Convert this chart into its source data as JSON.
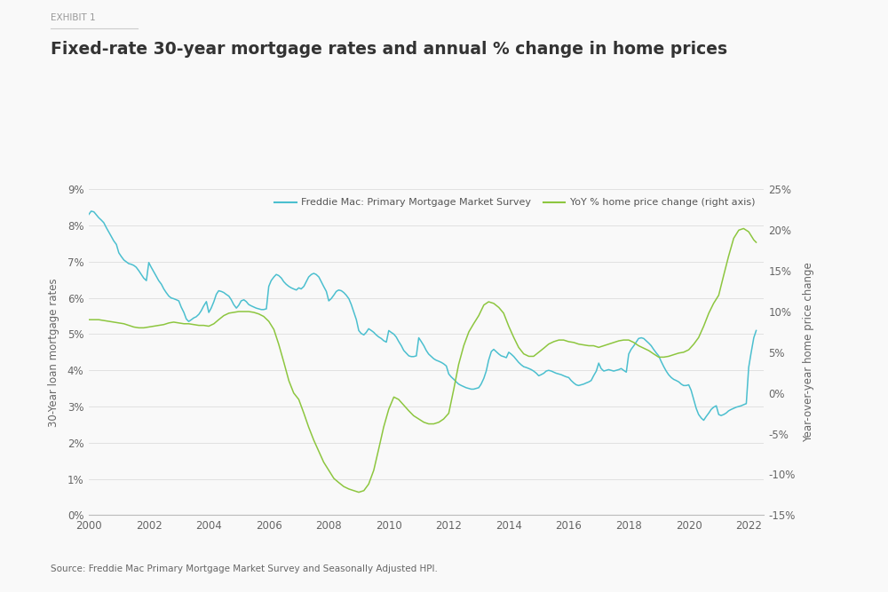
{
  "title": "Fixed-rate 30-year mortgage rates and annual % change in home prices",
  "exhibit": "EXHIBIT 1",
  "source": "Source: Freddie Mac Primary Mortgage Market Survey and Seasonally Adjusted HPI.",
  "ylabel_left": "30-Year loan mortgage rates",
  "ylabel_right": "Year-over-year home price change",
  "legend_line1": "Freddie Mac: Primary Mortgage Market Survey",
  "legend_line2": "YoY % home price change (right axis)",
  "color_mortgage": "#4BBFCF",
  "color_hpi": "#8DC63F",
  "background_color": "#F9F9F9",
  "xlim": [
    2000,
    2022.5
  ],
  "ylim_left": [
    0,
    0.09
  ],
  "ylim_right": [
    -0.15,
    0.25
  ],
  "mortgage_dates": [
    2000.0,
    2000.08,
    2000.17,
    2000.25,
    2000.33,
    2000.42,
    2000.5,
    2000.58,
    2000.67,
    2000.75,
    2000.83,
    2000.92,
    2001.0,
    2001.08,
    2001.17,
    2001.25,
    2001.33,
    2001.42,
    2001.5,
    2001.58,
    2001.67,
    2001.75,
    2001.83,
    2001.92,
    2002.0,
    2002.08,
    2002.17,
    2002.25,
    2002.33,
    2002.42,
    2002.5,
    2002.58,
    2002.67,
    2002.75,
    2002.83,
    2002.92,
    2003.0,
    2003.08,
    2003.17,
    2003.25,
    2003.33,
    2003.42,
    2003.5,
    2003.58,
    2003.67,
    2003.75,
    2003.83,
    2003.92,
    2004.0,
    2004.08,
    2004.17,
    2004.25,
    2004.33,
    2004.42,
    2004.5,
    2004.58,
    2004.67,
    2004.75,
    2004.83,
    2004.92,
    2005.0,
    2005.08,
    2005.17,
    2005.25,
    2005.33,
    2005.42,
    2005.5,
    2005.58,
    2005.67,
    2005.75,
    2005.83,
    2005.92,
    2006.0,
    2006.08,
    2006.17,
    2006.25,
    2006.33,
    2006.42,
    2006.5,
    2006.58,
    2006.67,
    2006.75,
    2006.83,
    2006.92,
    2007.0,
    2007.08,
    2007.17,
    2007.25,
    2007.33,
    2007.42,
    2007.5,
    2007.58,
    2007.67,
    2007.75,
    2007.83,
    2007.92,
    2008.0,
    2008.08,
    2008.17,
    2008.25,
    2008.33,
    2008.42,
    2008.5,
    2008.58,
    2008.67,
    2008.75,
    2008.83,
    2008.92,
    2009.0,
    2009.08,
    2009.17,
    2009.25,
    2009.33,
    2009.42,
    2009.5,
    2009.58,
    2009.67,
    2009.75,
    2009.83,
    2009.92,
    2010.0,
    2010.08,
    2010.17,
    2010.25,
    2010.33,
    2010.42,
    2010.5,
    2010.58,
    2010.67,
    2010.75,
    2010.83,
    2010.92,
    2011.0,
    2011.08,
    2011.17,
    2011.25,
    2011.33,
    2011.42,
    2011.5,
    2011.58,
    2011.67,
    2011.75,
    2011.83,
    2011.92,
    2012.0,
    2012.08,
    2012.17,
    2012.25,
    2012.33,
    2012.42,
    2012.5,
    2012.58,
    2012.67,
    2012.75,
    2012.83,
    2012.92,
    2013.0,
    2013.08,
    2013.17,
    2013.25,
    2013.33,
    2013.42,
    2013.5,
    2013.58,
    2013.67,
    2013.75,
    2013.83,
    2013.92,
    2014.0,
    2014.08,
    2014.17,
    2014.25,
    2014.33,
    2014.42,
    2014.5,
    2014.58,
    2014.67,
    2014.75,
    2014.83,
    2014.92,
    2015.0,
    2015.08,
    2015.17,
    2015.25,
    2015.33,
    2015.42,
    2015.5,
    2015.58,
    2015.67,
    2015.75,
    2015.83,
    2015.92,
    2016.0,
    2016.08,
    2016.17,
    2016.25,
    2016.33,
    2016.42,
    2016.5,
    2016.58,
    2016.67,
    2016.75,
    2016.83,
    2016.92,
    2017.0,
    2017.08,
    2017.17,
    2017.25,
    2017.33,
    2017.42,
    2017.5,
    2017.58,
    2017.67,
    2017.75,
    2017.83,
    2017.92,
    2018.0,
    2018.08,
    2018.17,
    2018.25,
    2018.33,
    2018.42,
    2018.5,
    2018.58,
    2018.67,
    2018.75,
    2018.83,
    2018.92,
    2019.0,
    2019.08,
    2019.17,
    2019.25,
    2019.33,
    2019.42,
    2019.5,
    2019.58,
    2019.67,
    2019.75,
    2019.83,
    2019.92,
    2020.0,
    2020.08,
    2020.17,
    2020.25,
    2020.33,
    2020.42,
    2020.5,
    2020.58,
    2020.67,
    2020.75,
    2020.83,
    2020.92,
    2021.0,
    2021.08,
    2021.17,
    2021.25,
    2021.33,
    2021.42,
    2021.5,
    2021.58,
    2021.67,
    2021.75,
    2021.83,
    2021.92,
    2022.0,
    2022.08,
    2022.17,
    2022.25
  ],
  "mortgage_rates": [
    0.0831,
    0.084,
    0.0838,
    0.083,
    0.0822,
    0.0815,
    0.0808,
    0.0795,
    0.0782,
    0.077,
    0.0758,
    0.0748,
    0.0725,
    0.0715,
    0.0705,
    0.07,
    0.0695,
    0.0693,
    0.069,
    0.0685,
    0.0675,
    0.0665,
    0.0655,
    0.0648,
    0.0698,
    0.0685,
    0.0672,
    0.066,
    0.0648,
    0.0638,
    0.0625,
    0.0615,
    0.0605,
    0.06,
    0.0598,
    0.0595,
    0.0592,
    0.0575,
    0.056,
    0.0542,
    0.0535,
    0.054,
    0.0545,
    0.0548,
    0.0555,
    0.0565,
    0.0578,
    0.059,
    0.056,
    0.0572,
    0.059,
    0.061,
    0.062,
    0.0618,
    0.0615,
    0.061,
    0.0605,
    0.0595,
    0.0582,
    0.0572,
    0.058,
    0.0592,
    0.0595,
    0.059,
    0.0582,
    0.0578,
    0.0575,
    0.0572,
    0.057,
    0.0568,
    0.0568,
    0.057,
    0.0632,
    0.0648,
    0.0658,
    0.0665,
    0.0662,
    0.0655,
    0.0645,
    0.0638,
    0.0632,
    0.0628,
    0.0625,
    0.0622,
    0.0628,
    0.0625,
    0.0632,
    0.0645,
    0.0658,
    0.0665,
    0.0668,
    0.0665,
    0.0658,
    0.0645,
    0.0632,
    0.0618,
    0.0592,
    0.0598,
    0.0608,
    0.0618,
    0.0622,
    0.062,
    0.0615,
    0.0608,
    0.0598,
    0.0582,
    0.0562,
    0.054,
    0.051,
    0.0502,
    0.0498,
    0.0505,
    0.0515,
    0.051,
    0.0505,
    0.0498,
    0.0492,
    0.0488,
    0.0482,
    0.0478,
    0.051,
    0.0505,
    0.05,
    0.0492,
    0.048,
    0.0468,
    0.0455,
    0.0448,
    0.044,
    0.0438,
    0.0438,
    0.044,
    0.049,
    0.048,
    0.0468,
    0.0455,
    0.0445,
    0.0438,
    0.0432,
    0.0428,
    0.0425,
    0.0422,
    0.0418,
    0.0412,
    0.039,
    0.0382,
    0.0375,
    0.0368,
    0.0362,
    0.0358,
    0.0355,
    0.0352,
    0.035,
    0.0348,
    0.0348,
    0.035,
    0.0352,
    0.0362,
    0.0378,
    0.0398,
    0.0428,
    0.0452,
    0.0458,
    0.0452,
    0.0445,
    0.044,
    0.0438,
    0.0435,
    0.045,
    0.0445,
    0.0438,
    0.043,
    0.0422,
    0.0415,
    0.041,
    0.0408,
    0.0405,
    0.0402,
    0.0398,
    0.0392,
    0.0385,
    0.0388,
    0.0392,
    0.0398,
    0.04,
    0.0398,
    0.0395,
    0.0392,
    0.039,
    0.0388,
    0.0385,
    0.0382,
    0.038,
    0.0372,
    0.0365,
    0.036,
    0.0358,
    0.036,
    0.0362,
    0.0365,
    0.0368,
    0.0372,
    0.0385,
    0.0398,
    0.042,
    0.0405,
    0.0398,
    0.04,
    0.0402,
    0.04,
    0.0398,
    0.04,
    0.0402,
    0.0405,
    0.04,
    0.0395,
    0.0445,
    0.0458,
    0.0468,
    0.0478,
    0.0488,
    0.049,
    0.0488,
    0.0482,
    0.0475,
    0.0468,
    0.0458,
    0.0448,
    0.044,
    0.0425,
    0.041,
    0.0398,
    0.0388,
    0.038,
    0.0375,
    0.0372,
    0.0368,
    0.0362,
    0.0358,
    0.0358,
    0.036,
    0.0345,
    0.0318,
    0.0295,
    0.0278,
    0.0268,
    0.0262,
    0.0272,
    0.0282,
    0.0292,
    0.0298,
    0.0302,
    0.0278,
    0.0275,
    0.0278,
    0.0282,
    0.0288,
    0.0292,
    0.0295,
    0.0298,
    0.03,
    0.0302,
    0.0305,
    0.0308,
    0.0408,
    0.0448,
    0.049,
    0.051
  ],
  "hpi_dates": [
    2000.0,
    2000.17,
    2000.33,
    2000.5,
    2000.67,
    2000.83,
    2001.0,
    2001.17,
    2001.33,
    2001.5,
    2001.67,
    2001.83,
    2002.0,
    2002.17,
    2002.33,
    2002.5,
    2002.67,
    2002.83,
    2003.0,
    2003.17,
    2003.33,
    2003.5,
    2003.67,
    2003.83,
    2004.0,
    2004.17,
    2004.33,
    2004.5,
    2004.67,
    2004.83,
    2005.0,
    2005.17,
    2005.33,
    2005.5,
    2005.67,
    2005.83,
    2006.0,
    2006.17,
    2006.33,
    2006.5,
    2006.67,
    2006.83,
    2007.0,
    2007.17,
    2007.33,
    2007.5,
    2007.67,
    2007.83,
    2008.0,
    2008.17,
    2008.33,
    2008.5,
    2008.67,
    2008.83,
    2009.0,
    2009.17,
    2009.33,
    2009.5,
    2009.67,
    2009.83,
    2010.0,
    2010.17,
    2010.33,
    2010.5,
    2010.67,
    2010.83,
    2011.0,
    2011.17,
    2011.33,
    2011.5,
    2011.67,
    2011.83,
    2012.0,
    2012.17,
    2012.33,
    2012.5,
    2012.67,
    2012.83,
    2013.0,
    2013.17,
    2013.33,
    2013.5,
    2013.67,
    2013.83,
    2014.0,
    2014.17,
    2014.33,
    2014.5,
    2014.67,
    2014.83,
    2015.0,
    2015.17,
    2015.33,
    2015.5,
    2015.67,
    2015.83,
    2016.0,
    2016.17,
    2016.33,
    2016.5,
    2016.67,
    2016.83,
    2017.0,
    2017.17,
    2017.33,
    2017.5,
    2017.67,
    2017.83,
    2018.0,
    2018.17,
    2018.33,
    2018.5,
    2018.67,
    2018.83,
    2019.0,
    2019.17,
    2019.33,
    2019.5,
    2019.67,
    2019.83,
    2020.0,
    2020.17,
    2020.33,
    2020.5,
    2020.67,
    2020.83,
    2021.0,
    2021.17,
    2021.33,
    2021.5,
    2021.67,
    2021.83,
    2022.0,
    2022.17,
    2022.25
  ],
  "hpi_values": [
    0.09,
    0.09,
    0.09,
    0.089,
    0.088,
    0.087,
    0.086,
    0.085,
    0.083,
    0.081,
    0.08,
    0.08,
    0.081,
    0.082,
    0.083,
    0.084,
    0.086,
    0.087,
    0.086,
    0.085,
    0.085,
    0.084,
    0.083,
    0.083,
    0.082,
    0.085,
    0.09,
    0.095,
    0.098,
    0.099,
    0.1,
    0.1,
    0.1,
    0.099,
    0.097,
    0.094,
    0.088,
    0.078,
    0.06,
    0.038,
    0.015,
    0.0,
    -0.008,
    -0.025,
    -0.042,
    -0.058,
    -0.072,
    -0.085,
    -0.095,
    -0.105,
    -0.11,
    -0.115,
    -0.118,
    -0.12,
    -0.122,
    -0.12,
    -0.112,
    -0.095,
    -0.068,
    -0.042,
    -0.02,
    -0.005,
    -0.008,
    -0.015,
    -0.022,
    -0.028,
    -0.032,
    -0.036,
    -0.038,
    -0.038,
    -0.036,
    -0.032,
    -0.025,
    0.005,
    0.035,
    0.058,
    0.075,
    0.085,
    0.095,
    0.108,
    0.112,
    0.11,
    0.105,
    0.098,
    0.082,
    0.068,
    0.056,
    0.048,
    0.045,
    0.045,
    0.05,
    0.055,
    0.06,
    0.063,
    0.065,
    0.065,
    0.063,
    0.062,
    0.06,
    0.059,
    0.058,
    0.058,
    0.056,
    0.058,
    0.06,
    0.062,
    0.064,
    0.065,
    0.065,
    0.062,
    0.058,
    0.055,
    0.052,
    0.048,
    0.044,
    0.044,
    0.045,
    0.047,
    0.049,
    0.05,
    0.053,
    0.06,
    0.068,
    0.082,
    0.098,
    0.11,
    0.12,
    0.145,
    0.168,
    0.19,
    0.2,
    0.202,
    0.198,
    0.188,
    0.185
  ]
}
